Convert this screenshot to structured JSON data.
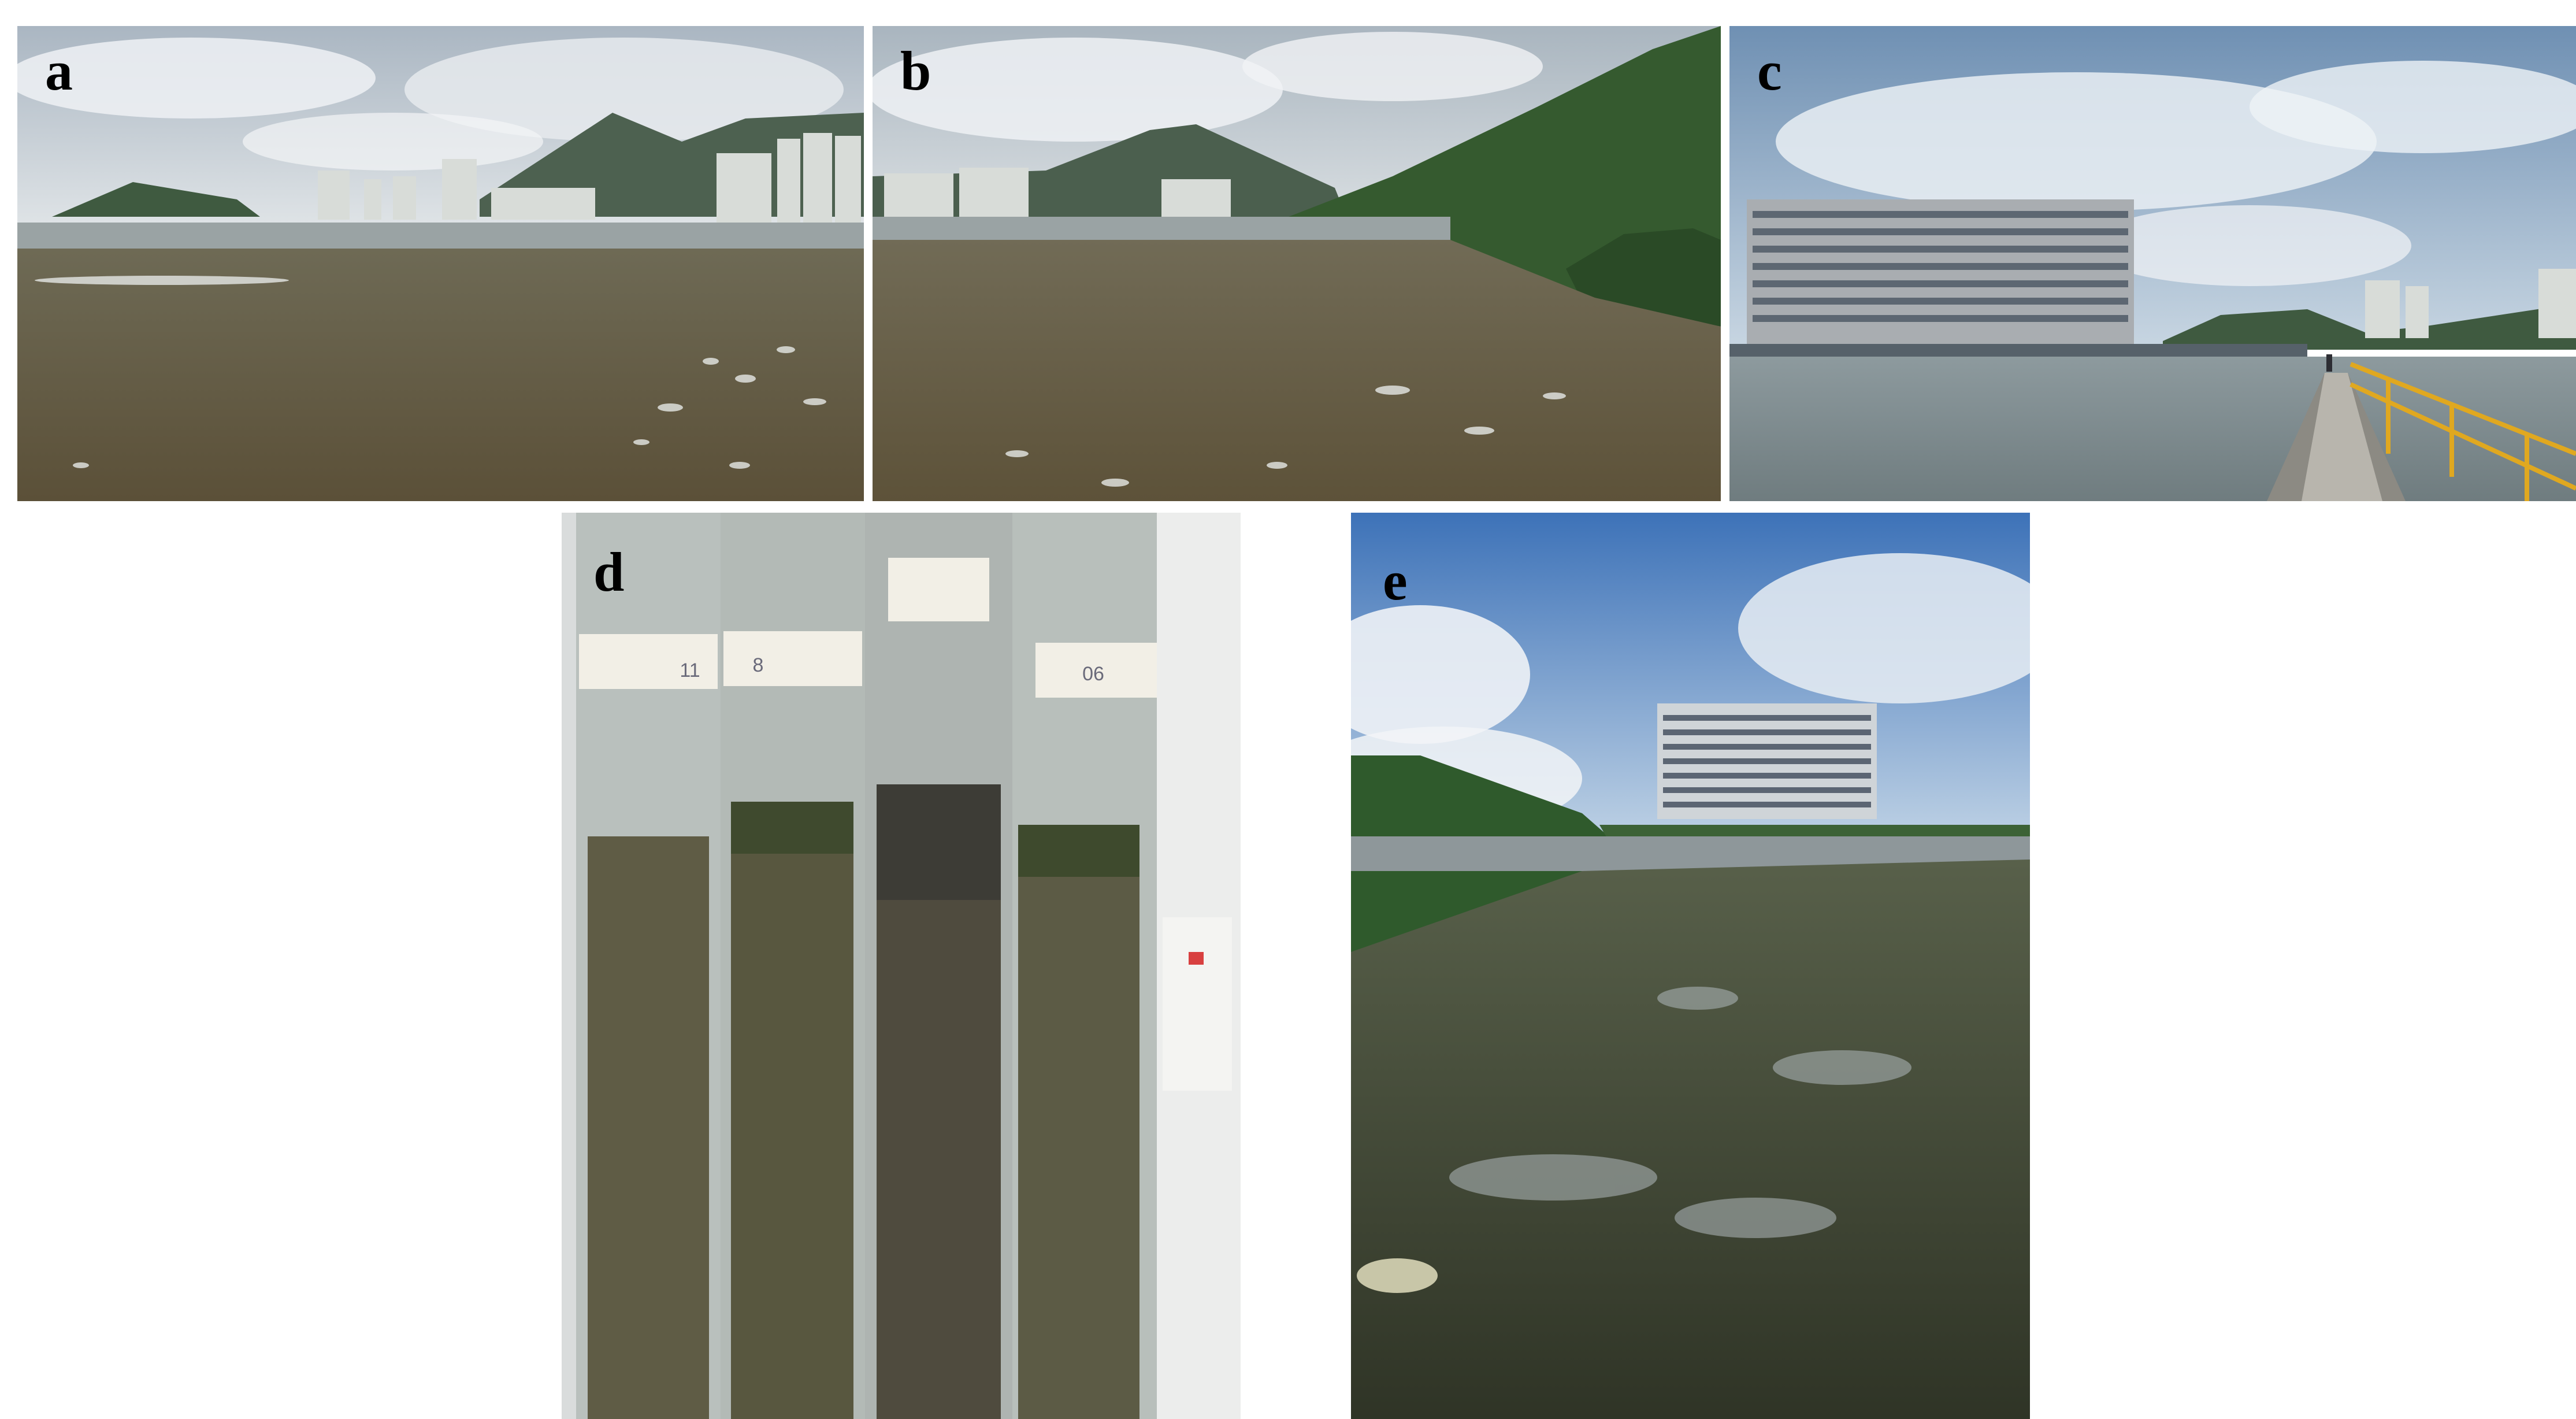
{
  "figure": {
    "panels": [
      {
        "label": "a",
        "scene": "mudflat with high-rise buildings and mountains under cloudy sky"
      },
      {
        "label": "b",
        "scene": "mudflat bordered by vegetated hillside and mangrove"
      },
      {
        "label": "c",
        "scene": "large building beside water with a walkway and yellow railing"
      },
      {
        "label": "d",
        "scene": "four sediment core tubes",
        "tube_labels": [
          "11",
          "8",
          "",
          "06"
        ]
      },
      {
        "label": "e",
        "scene": "mangrove and seagrass mudflat with building in background"
      }
    ]
  },
  "colors": {
    "sky": "#c9d3dc",
    "cloud": "#eef1f4",
    "mountain": "#4d6150",
    "mud": "#6b6244",
    "water": "#8e979a",
    "vegetation": "#2f5a2c",
    "sediment": "#5c5a45",
    "railing": "#e0a820"
  }
}
